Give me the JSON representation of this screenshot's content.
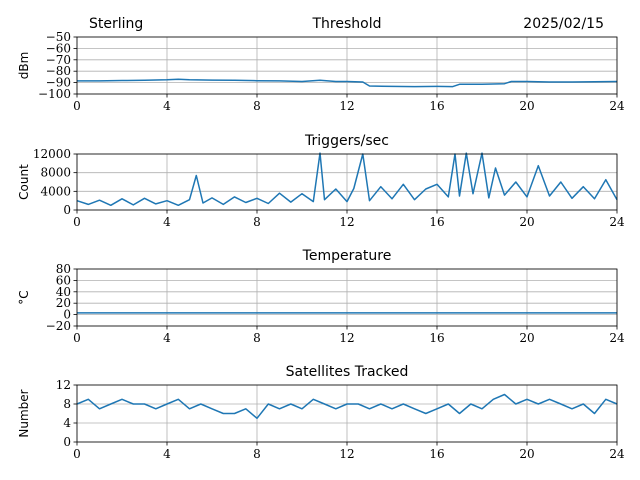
{
  "header": {
    "site": "Sterling",
    "date": "2025/02/15"
  },
  "chart_data": [
    {
      "type": "line",
      "title": "Threshold",
      "ylabel": "dBm",
      "xlim": [
        0,
        24
      ],
      "ylim": [
        -100,
        -50
      ],
      "xticks": [
        0,
        4,
        8,
        12,
        16,
        20,
        24
      ],
      "yticks": [
        -100,
        -90,
        -80,
        -70,
        -60,
        -50
      ],
      "grid": true,
      "color": "#1f77b4",
      "series": [
        {
          "x": [
            0,
            1,
            2,
            3,
            4,
            4.5,
            5,
            6,
            7,
            8,
            9,
            10,
            10.8,
            11.5,
            12,
            12.7,
            13,
            14,
            15,
            16,
            16.7,
            17,
            18,
            19,
            19.3,
            20,
            21,
            22,
            23,
            24
          ],
          "values": [
            -88.5,
            -88.5,
            -88.2,
            -88.0,
            -87.5,
            -87.0,
            -87.5,
            -87.8,
            -88.0,
            -88.3,
            -88.5,
            -89.0,
            -88.0,
            -89.0,
            -89.0,
            -89.5,
            -93.0,
            -93.3,
            -93.5,
            -93.3,
            -93.5,
            -91.5,
            -91.5,
            -91.0,
            -89.0,
            -89.0,
            -89.5,
            -89.5,
            -89.3,
            -89.0
          ]
        }
      ]
    },
    {
      "type": "line",
      "title": "Triggers/sec",
      "ylabel": "Count",
      "xlim": [
        0,
        24
      ],
      "ylim": [
        0,
        12000
      ],
      "xticks": [
        0,
        4,
        8,
        12,
        16,
        20,
        24
      ],
      "yticks": [
        0,
        4000,
        8000,
        12000
      ],
      "grid": true,
      "color": "#1f77b4",
      "series": [
        {
          "x": [
            0,
            0.5,
            1,
            1.5,
            2,
            2.5,
            3,
            3.5,
            4,
            4.5,
            5,
            5.3,
            5.6,
            6,
            6.5,
            7,
            7.5,
            8,
            8.5,
            9,
            9.5,
            10,
            10.5,
            10.8,
            11,
            11.5,
            12,
            12.3,
            12.7,
            13,
            13.5,
            14,
            14.5,
            15,
            15.5,
            16,
            16.5,
            16.8,
            17,
            17.3,
            17.6,
            18,
            18.3,
            18.6,
            19,
            19.5,
            20,
            20.5,
            21,
            21.5,
            22,
            22.5,
            23,
            23.5,
            24
          ],
          "values": [
            2000,
            1200,
            2100,
            1000,
            2400,
            1100,
            2500,
            1300,
            2000,
            1000,
            2200,
            7400,
            1500,
            2600,
            1200,
            2800,
            1600,
            2500,
            1400,
            3600,
            1700,
            3500,
            1800,
            12200,
            2200,
            4500,
            1800,
            4600,
            12000,
            2000,
            5000,
            2400,
            5500,
            2200,
            4500,
            5500,
            2800,
            12000,
            3000,
            12200,
            3500,
            12200,
            2600,
            9000,
            3200,
            6000,
            2800,
            9500,
            3000,
            6000,
            2500,
            5000,
            2400,
            6500,
            2200
          ]
        }
      ]
    },
    {
      "type": "line",
      "title": "Temperature",
      "ylabel": "°C",
      "xlim": [
        0,
        24
      ],
      "ylim": [
        -20,
        80
      ],
      "xticks": [
        0,
        4,
        8,
        12,
        16,
        20,
        24
      ],
      "yticks": [
        -20,
        0,
        20,
        40,
        60,
        80
      ],
      "grid": true,
      "color": "#1f77b4",
      "series": [
        {
          "x": [
            0,
            24
          ],
          "values": [
            3,
            3
          ]
        }
      ]
    },
    {
      "type": "line",
      "title": "Satellites Tracked",
      "ylabel": "Number",
      "xlim": [
        0,
        24
      ],
      "ylim": [
        0,
        12
      ],
      "xticks": [
        0,
        4,
        8,
        12,
        16,
        20,
        24
      ],
      "yticks": [
        0,
        4,
        8,
        12
      ],
      "grid": true,
      "color": "#1f77b4",
      "series": [
        {
          "x": [
            0,
            0.5,
            1,
            1.5,
            2,
            2.5,
            3,
            3.5,
            4,
            4.5,
            5,
            5.5,
            6,
            6.5,
            7,
            7.5,
            8,
            8.5,
            9,
            9.5,
            10,
            10.5,
            11,
            11.5,
            12,
            12.5,
            13,
            13.5,
            14,
            14.5,
            15,
            15.5,
            16,
            16.5,
            17,
            17.5,
            18,
            18.5,
            19,
            19.5,
            20,
            20.5,
            21,
            21.5,
            22,
            22.5,
            23,
            23.5,
            24
          ],
          "values": [
            8,
            9,
            7,
            8,
            9,
            8,
            8,
            7,
            8,
            9,
            7,
            8,
            7,
            6,
            6,
            7,
            5,
            8,
            7,
            8,
            7,
            9,
            8,
            7,
            8,
            8,
            7,
            8,
            7,
            8,
            7,
            6,
            7,
            8,
            6,
            8,
            7,
            9,
            10,
            8,
            9,
            8,
            9,
            8,
            7,
            8,
            6,
            9,
            8
          ]
        }
      ]
    }
  ]
}
